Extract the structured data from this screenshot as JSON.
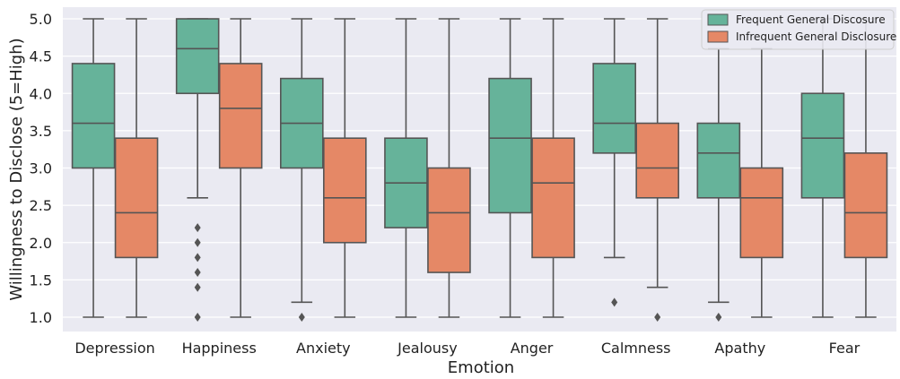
{
  "chart_data": {
    "type": "box",
    "title": "",
    "xlabel": "Emotion",
    "ylabel": "Willingness to Disclose (5=High)",
    "ylim": [
      0.9,
      5.1
    ],
    "yticks": [
      "1.0",
      "1.5",
      "2.0",
      "2.5",
      "3.0",
      "3.5",
      "4.0",
      "4.5",
      "5.0"
    ],
    "grid": true,
    "legend_position": "top-right",
    "categories": [
      "Depression",
      "Happiness",
      "Anxiety",
      "Jealousy",
      "Anger",
      "Calmness",
      "Apathy",
      "Fear"
    ],
    "series": [
      {
        "name": "Frequent General Discosure",
        "color": "#66b39a",
        "boxes": [
          {
            "whislo": 1.0,
            "q1": 3.0,
            "med": 3.6,
            "q3": 4.4,
            "whishi": 5.0,
            "fliers": []
          },
          {
            "whislo": 2.6,
            "q1": 4.0,
            "med": 4.6,
            "q3": 5.0,
            "whishi": 5.0,
            "fliers": [
              2.2,
              2.0,
              1.8,
              1.6,
              1.4,
              1.0
            ]
          },
          {
            "whislo": 1.2,
            "q1": 3.0,
            "med": 3.6,
            "q3": 4.2,
            "whishi": 5.0,
            "fliers": [
              1.0
            ]
          },
          {
            "whislo": 1.0,
            "q1": 2.2,
            "med": 2.8,
            "q3": 3.4,
            "whishi": 5.0,
            "fliers": []
          },
          {
            "whislo": 1.0,
            "q1": 2.4,
            "med": 3.4,
            "q3": 4.2,
            "whishi": 5.0,
            "fliers": []
          },
          {
            "whislo": 1.8,
            "q1": 3.2,
            "med": 3.6,
            "q3": 4.4,
            "whishi": 5.0,
            "fliers": [
              1.2
            ]
          },
          {
            "whislo": 1.2,
            "q1": 2.6,
            "med": 3.2,
            "q3": 3.6,
            "whishi": 4.6,
            "fliers": [
              1.0
            ]
          },
          {
            "whislo": 1.0,
            "q1": 2.6,
            "med": 3.4,
            "q3": 4.0,
            "whishi": 5.0,
            "fliers": []
          }
        ]
      },
      {
        "name": "Infrequent General Disclosure",
        "color": "#e58866",
        "boxes": [
          {
            "whislo": 1.0,
            "q1": 1.8,
            "med": 2.4,
            "q3": 3.4,
            "whishi": 5.0,
            "fliers": []
          },
          {
            "whislo": 1.0,
            "q1": 3.0,
            "med": 3.8,
            "q3": 4.4,
            "whishi": 5.0,
            "fliers": []
          },
          {
            "whislo": 1.0,
            "q1": 2.0,
            "med": 2.6,
            "q3": 3.4,
            "whishi": 5.0,
            "fliers": []
          },
          {
            "whislo": 1.0,
            "q1": 1.6,
            "med": 2.4,
            "q3": 3.0,
            "whishi": 5.0,
            "fliers": []
          },
          {
            "whislo": 1.0,
            "q1": 1.8,
            "med": 2.8,
            "q3": 3.4,
            "whishi": 5.0,
            "fliers": []
          },
          {
            "whislo": 1.4,
            "q1": 2.6,
            "med": 3.0,
            "q3": 3.6,
            "whishi": 5.0,
            "fliers": [
              1.0
            ]
          },
          {
            "whislo": 1.0,
            "q1": 1.8,
            "med": 2.6,
            "q3": 3.0,
            "whishi": 4.6,
            "fliers": []
          },
          {
            "whislo": 1.0,
            "q1": 1.8,
            "med": 2.4,
            "q3": 3.2,
            "whishi": 5.0,
            "fliers": []
          }
        ]
      }
    ]
  }
}
